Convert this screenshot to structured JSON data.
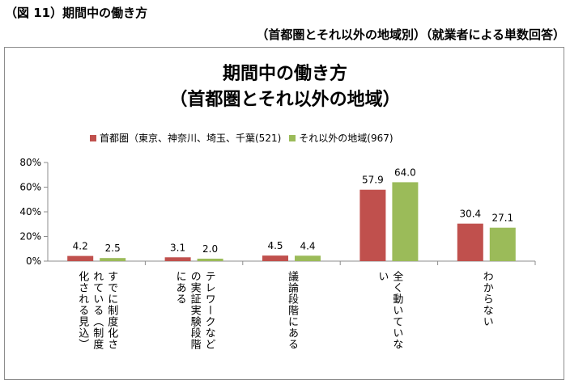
{
  "header": {
    "title": "（図 11）期間中の働き方",
    "subtitle": "（首都圏とそれ以外の地域別）（就業者による単数回答）"
  },
  "chart_data": {
    "type": "bar",
    "title_line1": "期間中の働き方",
    "title_line2": "（首都圏とそれ以外の地域）",
    "categories": [
      [
        "すでに制度化さ",
        "れている（制度",
        "化される見込）"
      ],
      [
        "テレワークなど",
        "の実証実験段階",
        "にある"
      ],
      [
        "議論段階にある"
      ],
      [
        "全く動いていな",
        "い"
      ],
      [
        "わからない"
      ]
    ],
    "series": [
      {
        "name": "首都圏（東京、神奈川、埼玉、千葉(521)",
        "color": "#c0504d",
        "values": [
          4.2,
          3.1,
          4.5,
          57.9,
          30.4
        ]
      },
      {
        "name": "それ以外の地域(967)",
        "color": "#9bbb59",
        "values": [
          2.5,
          2.0,
          4.4,
          64.0,
          27.1
        ]
      }
    ],
    "ylim": [
      0,
      80
    ],
    "yticks": [
      "0%",
      "20%",
      "40%",
      "60%",
      "80%"
    ],
    "ytick_values": [
      0,
      20,
      40,
      60,
      80
    ],
    "legend_position": "top",
    "grid": false
  }
}
